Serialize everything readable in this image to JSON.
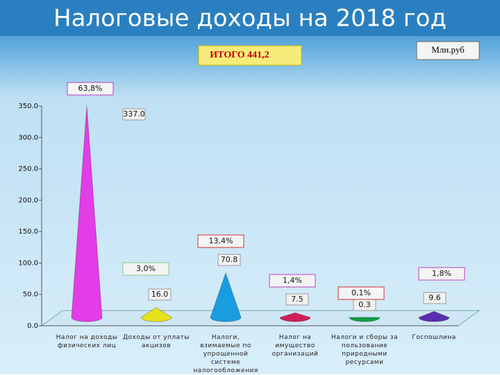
{
  "chart_data": {
    "type": "cone",
    "title": "Налоговые доходы  на 2018 год",
    "total": "ИТОГО  441,2",
    "unit": "Млн.руб",
    "categories": [
      "Налог на доходы физических лиц",
      "Доходы от уплаты акцизов",
      "Налоги, взимаемые по упрощенной системе налогообложения",
      "Налог на имущество организаций",
      "Налоги и сборы за пользование природными ресурсами",
      "Госпошлина"
    ],
    "values": [
      337.0,
      16.0,
      70.8,
      7.5,
      0.3,
      9.6
    ],
    "value_labels": [
      "337.0",
      "16.0",
      "70.8",
      "7.5",
      "0.3",
      "9.6"
    ],
    "percent_labels": [
      "63,8%",
      "3,0%",
      "13,4%",
      "1,4%",
      "0,1%",
      "1,8%"
    ],
    "colors": [
      "#e23de6",
      "#e6e21a",
      "#1a9de0",
      "#d01e5c",
      "#12a048",
      "#5a2eb0"
    ],
    "ylim": [
      0,
      350
    ],
    "yticks": [
      {
        "value": 0,
        "label": "0.0"
      },
      {
        "value": 50,
        "label": "50.0"
      },
      {
        "value": 100,
        "label": "100.0"
      },
      {
        "value": 150,
        "label": "150.0"
      },
      {
        "value": 200,
        "label": "200.0"
      },
      {
        "value": 250,
        "label": "250.0"
      },
      {
        "value": 300,
        "label": "300.0"
      },
      {
        "value": 350,
        "label": "350.0"
      }
    ]
  }
}
